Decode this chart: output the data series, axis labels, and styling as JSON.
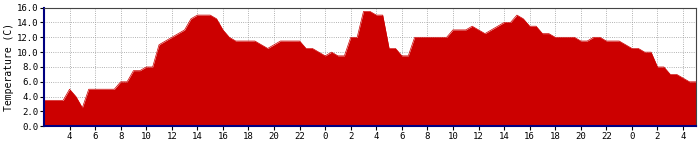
{
  "title": "",
  "ylabel": "Temperature (C)",
  "ylim": [
    0.0,
    16.0
  ],
  "yticks": [
    0.0,
    2.0,
    4.0,
    6.0,
    8.0,
    10.0,
    12.0,
    14.0,
    16.0
  ],
  "xtick_positions": [
    2,
    4,
    6,
    8,
    10,
    12,
    14,
    16,
    18,
    20,
    22,
    24,
    26,
    28,
    30,
    32,
    34,
    36,
    38,
    40,
    42,
    44,
    46,
    48,
    50
  ],
  "xtick_labels": [
    "4",
    "6",
    "8",
    "10",
    "12",
    "14",
    "16",
    "18",
    "20",
    "22",
    "0",
    "2",
    "4",
    "6",
    "8",
    "10",
    "12",
    "14",
    "16",
    "18",
    "20",
    "22",
    "0",
    "2",
    "4"
  ],
  "xlim": [
    0,
    51
  ],
  "fill_color": "#cc0000",
  "line_color": "#cc0000",
  "background_color": "#ffffff",
  "grid_color": "#999999",
  "axis_color": "#000080",
  "spine_color": "#444444",
  "values_x": [
    0,
    0.5,
    1,
    1.5,
    2,
    2.5,
    3,
    3.5,
    4,
    4.5,
    5,
    5.5,
    6,
    6.5,
    7,
    7.5,
    8,
    8.5,
    9,
    9.5,
    10,
    10.5,
    11,
    11.5,
    12,
    12.5,
    13,
    13.5,
    14,
    14.5,
    15,
    15.5,
    16,
    16.5,
    17,
    17.5,
    18,
    18.5,
    19,
    19.5,
    20,
    20.5,
    21,
    21.5,
    22,
    22.5,
    23,
    23.5,
    24,
    24.5,
    25,
    25.5,
    26,
    26.5,
    27,
    27.5,
    28,
    28.5,
    29,
    29.5,
    30,
    30.5,
    31,
    31.5,
    32,
    32.5,
    33,
    33.5,
    34,
    34.5,
    35,
    35.5,
    36,
    36.5,
    37,
    37.5,
    38,
    38.5,
    39,
    39.5,
    40,
    40.5,
    41,
    41.5,
    42,
    42.5,
    43,
    43.5,
    44,
    44.5,
    45,
    45.5,
    46,
    46.5,
    47,
    47.5,
    48,
    48.5,
    49,
    49.5,
    50,
    50.5,
    51
  ],
  "values_y": [
    3.5,
    3.5,
    3.5,
    3.5,
    5.0,
    4.0,
    2.5,
    5.0,
    5.0,
    5.0,
    5.0,
    5.0,
    6.0,
    6.0,
    7.5,
    7.5,
    8.0,
    8.0,
    11.0,
    11.5,
    12.0,
    12.5,
    13.0,
    14.5,
    15.0,
    15.0,
    15.0,
    14.5,
    13.0,
    12.0,
    11.5,
    11.5,
    11.5,
    11.5,
    11.0,
    10.5,
    11.0,
    11.5,
    11.5,
    11.5,
    11.5,
    10.5,
    10.5,
    10.0,
    9.5,
    10.0,
    9.5,
    9.5,
    12.0,
    12.0,
    15.5,
    15.5,
    15.0,
    15.0,
    10.5,
    10.5,
    9.5,
    9.5,
    12.0,
    12.0,
    12.0,
    12.0,
    12.0,
    12.0,
    13.0,
    13.0,
    13.0,
    13.5,
    13.0,
    12.5,
    13.0,
    13.5,
    14.0,
    14.0,
    15.0,
    14.5,
    13.5,
    13.5,
    12.5,
    12.5,
    12.0,
    12.0,
    12.0,
    12.0,
    11.5,
    11.5,
    12.0,
    12.0,
    11.5,
    11.5,
    11.5,
    11.0,
    10.5,
    10.5,
    10.0,
    10.0,
    8.0,
    8.0,
    7.0,
    7.0,
    6.5,
    6.0,
    6.0
  ]
}
